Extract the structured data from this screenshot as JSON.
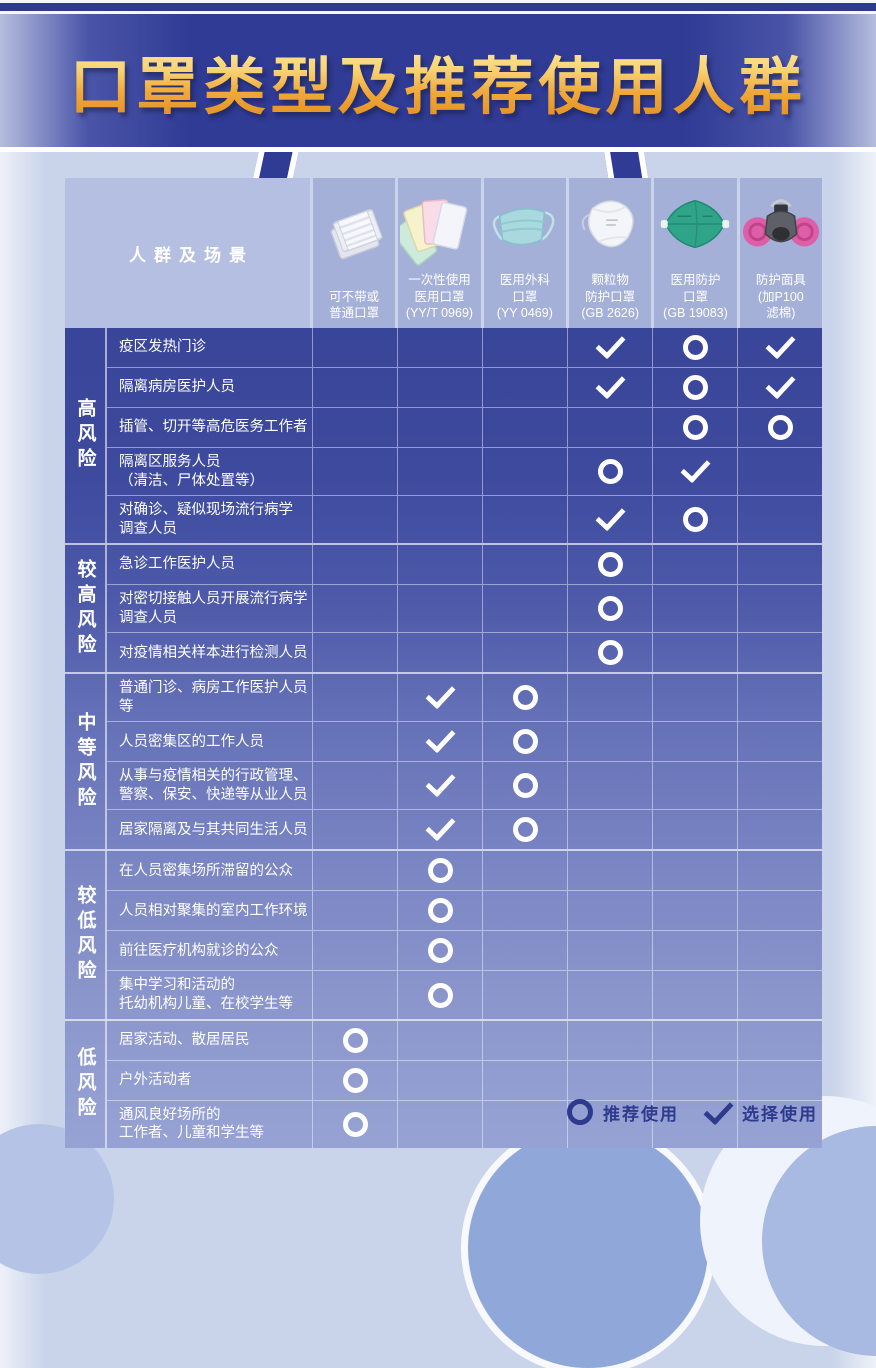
{
  "page": {
    "title": "口罩类型及推荐使用人群",
    "banner_color": "#2f3b94",
    "title_gold_top": "#fdeeb0",
    "title_gold_bottom": "#e08a1d",
    "background_color": "#c9d4ea"
  },
  "table": {
    "header_label": "人群及场景",
    "columns": [
      {
        "label": "可不带或\n普通口罩",
        "icon": "cotton-mask-icon"
      },
      {
        "label": "一次性使用\n医用口罩\n(YY/T 0969)",
        "icon": "disposable-medical-mask-icon"
      },
      {
        "label": "医用外科\n口罩\n(YY 0469)",
        "icon": "surgical-mask-icon"
      },
      {
        "label": "颗粒物\n防护口罩\n(GB 2626)",
        "icon": "particulate-respirator-icon"
      },
      {
        "label": "医用防护\n口罩\n(GB 19083)",
        "icon": "medical-protective-mask-icon"
      },
      {
        "label": "防护面具\n(加P100\n滤棉)",
        "icon": "respirator-facepiece-icon"
      }
    ],
    "sections": [
      {
        "risk": "高风险",
        "rows": [
          {
            "label": "疫区发热门诊",
            "marks": [
              "",
              "",
              "",
              "check",
              "circle",
              "check"
            ]
          },
          {
            "label": "隔离病房医护人员",
            "marks": [
              "",
              "",
              "",
              "check",
              "circle",
              "check"
            ]
          },
          {
            "label": "插管、切开等高危医务工作者",
            "marks": [
              "",
              "",
              "",
              "",
              "circle",
              "circle"
            ]
          },
          {
            "label": "隔离区服务人员\n（清洁、尸体处置等）",
            "marks": [
              "",
              "",
              "",
              "circle",
              "check",
              ""
            ]
          },
          {
            "label": "对确诊、疑似现场流行病学\n调查人员",
            "marks": [
              "",
              "",
              "",
              "check",
              "circle",
              ""
            ]
          }
        ]
      },
      {
        "risk": "较高风险",
        "rows": [
          {
            "label": "急诊工作医护人员",
            "marks": [
              "",
              "",
              "",
              "circle",
              "",
              ""
            ]
          },
          {
            "label": "对密切接触人员开展流行病学\n调查人员",
            "marks": [
              "",
              "",
              "",
              "circle",
              "",
              ""
            ]
          },
          {
            "label": "对疫情相关样本进行检测人员",
            "marks": [
              "",
              "",
              "",
              "circle",
              "",
              ""
            ]
          }
        ]
      },
      {
        "risk": "中等风险",
        "rows": [
          {
            "label": "普通门诊、病房工作医护人员等",
            "marks": [
              "",
              "check",
              "circle",
              "",
              "",
              ""
            ]
          },
          {
            "label": "人员密集区的工作人员",
            "marks": [
              "",
              "check",
              "circle",
              "",
              "",
              ""
            ]
          },
          {
            "label": "从事与疫情相关的行政管理、\n警察、保安、快递等从业人员",
            "marks": [
              "",
              "check",
              "circle",
              "",
              "",
              ""
            ]
          },
          {
            "label": "居家隔离及与其共同生活人员",
            "marks": [
              "",
              "check",
              "circle",
              "",
              "",
              ""
            ]
          }
        ]
      },
      {
        "risk": "较低风险",
        "rows": [
          {
            "label": "在人员密集场所滞留的公众",
            "marks": [
              "",
              "circle",
              "",
              "",
              "",
              ""
            ]
          },
          {
            "label": "人员相对聚集的室内工作环境",
            "marks": [
              "",
              "circle",
              "",
              "",
              "",
              ""
            ]
          },
          {
            "label": "前往医疗机构就诊的公众",
            "marks": [
              "",
              "circle",
              "",
              "",
              "",
              ""
            ]
          },
          {
            "label": "集中学习和活动的\n托幼机构儿童、在校学生等",
            "marks": [
              "",
              "circle",
              "",
              "",
              "",
              ""
            ]
          }
        ]
      },
      {
        "risk": "低风险",
        "rows": [
          {
            "label": "居家活动、散居居民",
            "marks": [
              "circle",
              "",
              "",
              "",
              "",
              ""
            ]
          },
          {
            "label": "户外活动者",
            "marks": [
              "circle",
              "",
              "",
              "",
              "",
              ""
            ]
          },
          {
            "label": "通风良好场所的\n工作者、儿童和学生等",
            "marks": [
              "circle",
              "",
              "",
              "",
              "",
              ""
            ]
          }
        ]
      }
    ]
  },
  "legend": {
    "recommended_symbol": "circle",
    "recommended_label": "推荐使用",
    "optional_symbol": "check",
    "optional_label": "选择使用",
    "color": "#2e3a8e"
  }
}
